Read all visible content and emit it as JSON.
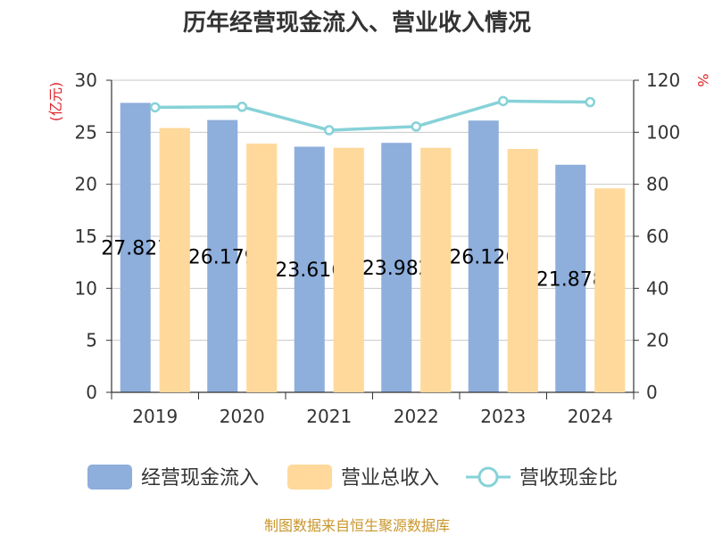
{
  "chart_data": {
    "type": "bar",
    "title": "历年经营现金流入、营业收入情况",
    "categories": [
      "2019",
      "2020",
      "2021",
      "2022",
      "2023",
      "2024"
    ],
    "y_left_unit": "(亿元)",
    "y_right_unit": "%",
    "y_left_range": [
      0,
      30
    ],
    "y_left_ticks": [
      0,
      5,
      10,
      15,
      20,
      25,
      30
    ],
    "y_right_range": [
      0,
      120
    ],
    "y_right_ticks": [
      0,
      20,
      40,
      60,
      80,
      100,
      120
    ],
    "grid": true,
    "legend_position": "bottom",
    "series": [
      {
        "name": "经营现金流入",
        "type": "bar",
        "axis": "left",
        "color": "#8eaedc",
        "values": [
          27.827,
          26.179,
          23.616,
          23.982,
          26.126,
          21.878
        ],
        "labels": [
          "27.827",
          "26.179",
          "23.616",
          "23.982",
          "26.126",
          "21.878"
        ]
      },
      {
        "name": "营业总收入",
        "type": "bar",
        "axis": "left",
        "color": "#ffd99b",
        "values": [
          25.4,
          23.9,
          23.5,
          23.5,
          23.4,
          19.6
        ]
      },
      {
        "name": "营收现金比",
        "type": "line",
        "axis": "right",
        "color": "#86d2d8",
        "values": [
          109.6,
          109.8,
          100.8,
          102.2,
          112.0,
          111.6
        ]
      }
    ]
  },
  "source": "制图数据来自恒生聚源数据库"
}
